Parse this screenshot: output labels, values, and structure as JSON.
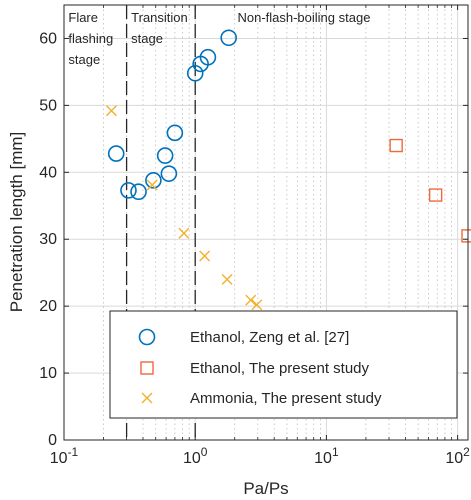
{
  "chart_data": {
    "type": "scatter",
    "xlabel": "Pa/Ps",
    "ylabel": "Penetration length [mm]",
    "xscale": "log",
    "xlim": [
      0.1,
      120
    ],
    "ylim": [
      0,
      65
    ],
    "x_ticks": [
      {
        "value": 0.1,
        "base": "10",
        "exp": "-1"
      },
      {
        "value": 1,
        "base": "10",
        "exp": "0"
      },
      {
        "value": 10,
        "base": "10",
        "exp": "1"
      },
      {
        "value": 100,
        "base": "10",
        "exp": "2"
      }
    ],
    "y_ticks": [
      0,
      10,
      20,
      30,
      40,
      50,
      60
    ],
    "grid": true,
    "legend_position": "bottom-right",
    "stage_boundaries": [
      0.3,
      1.0
    ],
    "stages": [
      {
        "lines": [
          "Flare",
          "flashing",
          "stage"
        ],
        "x": 0.108
      },
      {
        "lines": [
          "Transition",
          "stage"
        ],
        "x": 0.325
      },
      {
        "lines": [
          "Non-flash-boiling stage"
        ],
        "x": 2.1
      }
    ],
    "series": [
      {
        "name": "Ethanol, Zeng et al. [27]",
        "marker": "circle",
        "color": "#0072BD",
        "x": [
          0.25,
          0.31,
          0.37,
          0.48,
          0.59,
          0.63,
          0.7,
          1.0,
          1.1,
          1.25,
          1.8
        ],
        "y": [
          42.8,
          37.3,
          37.1,
          38.8,
          42.5,
          39.8,
          45.9,
          54.8,
          56.2,
          57.2,
          60.1
        ]
      },
      {
        "name": "Ethanol, The present study",
        "marker": "square",
        "color": "#EE6A3A",
        "x": [
          34,
          68,
          120
        ],
        "y": [
          44.0,
          36.6,
          30.5
        ]
      },
      {
        "name": "Ammonia, The present study",
        "marker": "x",
        "color": "#F2B12A",
        "x": [
          0.23,
          0.47,
          0.82,
          1.18,
          1.75,
          2.65,
          2.95
        ],
        "y": [
          49.2,
          38.1,
          30.9,
          27.5,
          24.0,
          20.9,
          20.2
        ]
      }
    ]
  }
}
